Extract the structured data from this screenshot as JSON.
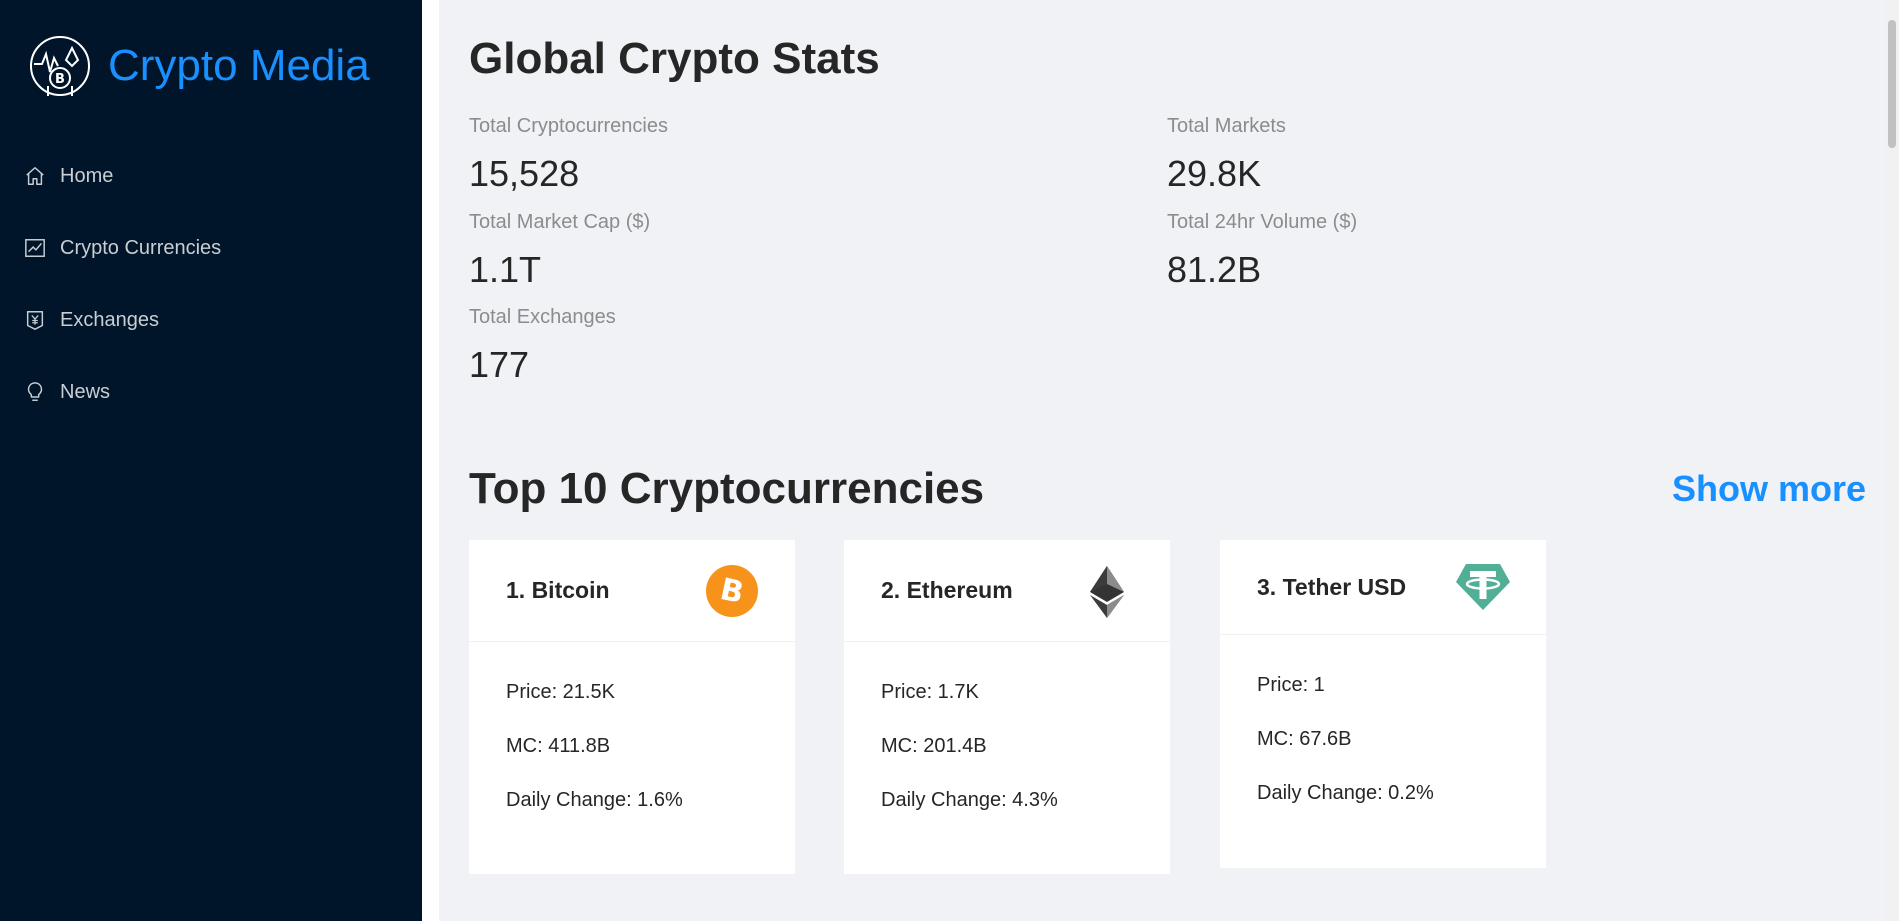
{
  "brand": {
    "name": "Crypto Media",
    "logo_icon": "crypto-logo-icon",
    "color": "#1890ff"
  },
  "nav": [
    {
      "label": "Home",
      "icon": "home-icon"
    },
    {
      "label": "Crypto Currencies",
      "icon": "line-chart-icon"
    },
    {
      "label": "Exchanges",
      "icon": "money-collect-icon"
    },
    {
      "label": "News",
      "icon": "bulb-icon"
    }
  ],
  "global_stats": {
    "title": "Global Crypto Stats",
    "items": [
      {
        "label": "Total Cryptocurrencies",
        "value": "15,528"
      },
      {
        "label": "Total Markets",
        "value": "29.8K"
      },
      {
        "label": "Total Market Cap ($)",
        "value": "1.1T"
      },
      {
        "label": "Total 24hr Volume ($)",
        "value": "81.2B"
      },
      {
        "label": "Total Exchanges",
        "value": "177"
      }
    ]
  },
  "top": {
    "title": "Top 10 Cryptocurrencies",
    "show_more": "Show more",
    "cards": [
      {
        "title": "1. Bitcoin",
        "icon": "bitcoin-icon",
        "icon_color": "#f7931a",
        "price": "Price: 21.5K",
        "mc": "MC: 411.8B",
        "change": "Daily Change: 1.6%"
      },
      {
        "title": "2. Ethereum",
        "icon": "ethereum-icon",
        "icon_color": "#343434",
        "price": "Price: 1.7K",
        "mc": "MC: 201.4B",
        "change": "Daily Change: 4.3%"
      },
      {
        "title": "3. Tether USD",
        "icon": "tether-icon",
        "icon_color": "#50af95",
        "price": "Price: 1",
        "mc": "MC: 67.6B",
        "change": "Daily Change: 0.2%"
      }
    ]
  }
}
